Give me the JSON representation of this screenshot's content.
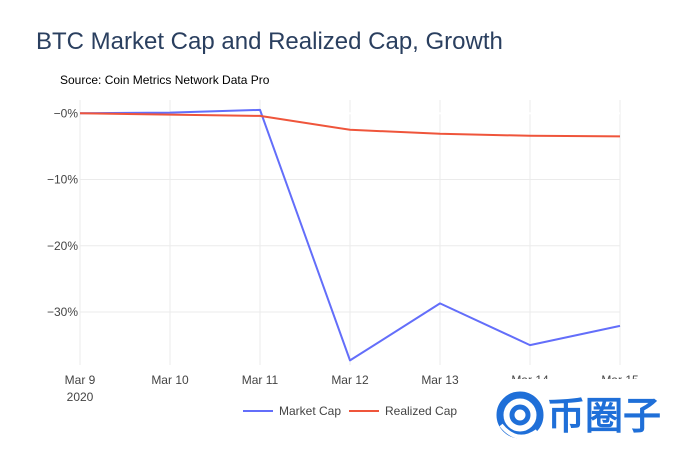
{
  "title": "BTC Market Cap and Realized Cap, Growth",
  "source": "Source: Coin Metrics Network Data Pro",
  "colors": {
    "market_cap": "#636efa",
    "realized_cap": "#ef553b",
    "grid": "#ebebeb",
    "zero_line": "#ffffff"
  },
  "chart_data": {
    "type": "line",
    "title": "BTC Market Cap and Realized Cap, Growth",
    "categories": [
      "Mar 9",
      "Mar 10",
      "Mar 11",
      "Mar 12",
      "Mar 13",
      "Mar 14",
      "Mar 15"
    ],
    "x_year_label": "2020",
    "y_ticks": [
      0,
      -10,
      -20,
      -30
    ],
    "y_tick_labels": [
      "−0%",
      "−10%",
      "−20%",
      "−30%"
    ],
    "ylim": [
      -38,
      2
    ],
    "xlabel": "",
    "ylabel": "",
    "grid": true,
    "legend_position": "bottom-center",
    "series": [
      {
        "name": "Market Cap",
        "color_key": "market_cap",
        "values": [
          0,
          0.1,
          0.5,
          -37.3,
          -28.7,
          -35.0,
          -32.1
        ]
      },
      {
        "name": "Realized Cap",
        "color_key": "realized_cap",
        "values": [
          0,
          -0.2,
          -0.4,
          -2.5,
          -3.1,
          -3.4,
          -3.5
        ]
      }
    ]
  },
  "watermark": {
    "text": "币圈子",
    "icon": "swirl-logo-icon",
    "color": "#1f6fd8"
  }
}
